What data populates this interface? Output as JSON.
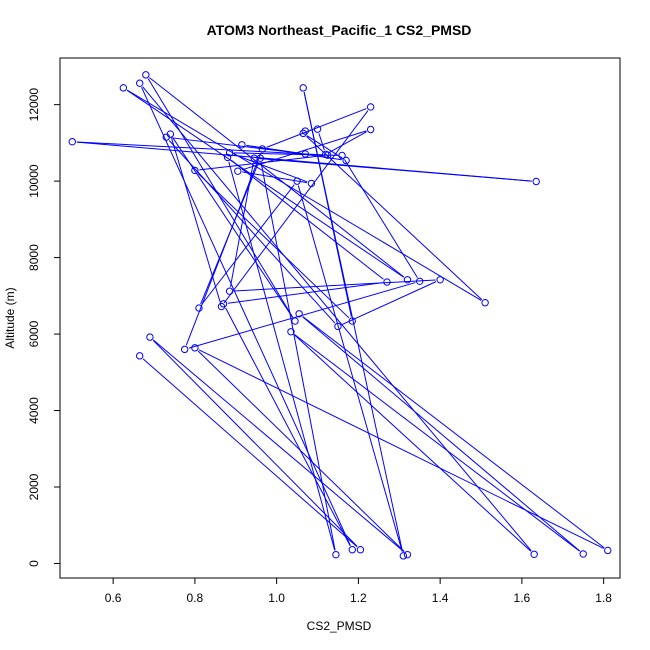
{
  "chart_data": {
    "type": "line",
    "title": "ATOM3 Northeast_Pacific_1 CS2_PMSD",
    "xlabel": "CS2_PMSD",
    "ylabel": "Altitude (m)",
    "xlim": [
      0.47,
      1.84
    ],
    "ylim": [
      -380,
      13220
    ],
    "x_ticks": [
      "0.6",
      "0.8",
      "1.0",
      "1.2",
      "1.4",
      "1.6",
      "1.8"
    ],
    "x_tick_values": [
      0.6,
      0.8,
      1.0,
      1.2,
      1.4,
      1.6,
      1.8
    ],
    "y_ticks": [
      "0",
      "2000",
      "4000",
      "6000",
      "8000",
      "10000",
      "12000"
    ],
    "y_tick_values": [
      0,
      2000,
      4000,
      6000,
      8000,
      10000,
      12000
    ],
    "grid": false,
    "series": [
      {
        "color": "#0000ff",
        "marker": "open-circle",
        "points": [
          {
            "x": 0.665,
            "y": 5430
          },
          {
            "x": 1.205,
            "y": 360
          },
          {
            "x": 0.69,
            "y": 5920
          },
          {
            "x": 1.32,
            "y": 230
          },
          {
            "x": 0.8,
            "y": 5640
          },
          {
            "x": 1.81,
            "y": 340
          },
          {
            "x": 1.055,
            "y": 6530
          },
          {
            "x": 1.75,
            "y": 250
          },
          {
            "x": 1.035,
            "y": 6060
          },
          {
            "x": 1.63,
            "y": 240
          },
          {
            "x": 0.665,
            "y": 12560
          },
          {
            "x": 1.185,
            "y": 360
          },
          {
            "x": 0.87,
            "y": 6790
          },
          {
            "x": 1.27,
            "y": 7360
          },
          {
            "x": 0.88,
            "y": 10620
          },
          {
            "x": 1.145,
            "y": 230
          },
          {
            "x": 0.96,
            "y": 10600
          },
          {
            "x": 0.81,
            "y": 6680
          },
          {
            "x": 1.05,
            "y": 10000
          },
          {
            "x": 1.31,
            "y": 200
          },
          {
            "x": 1.065,
            "y": 12440
          },
          {
            "x": 1.185,
            "y": 6340
          },
          {
            "x": 0.8,
            "y": 10280
          },
          {
            "x": 1.125,
            "y": 10680
          },
          {
            "x": 0.5,
            "y": 11030
          },
          {
            "x": 1.635,
            "y": 9990
          },
          {
            "x": 0.945,
            "y": 10600
          },
          {
            "x": 0.885,
            "y": 7120
          },
          {
            "x": 1.4,
            "y": 7420
          },
          {
            "x": 1.15,
            "y": 6200
          },
          {
            "x": 0.73,
            "y": 11150
          },
          {
            "x": 1.07,
            "y": 10710
          },
          {
            "x": 0.915,
            "y": 10950
          },
          {
            "x": 1.17,
            "y": 10540
          },
          {
            "x": 1.065,
            "y": 11250
          },
          {
            "x": 1.51,
            "y": 6820
          },
          {
            "x": 0.625,
            "y": 12440
          },
          {
            "x": 1.32,
            "y": 7420
          },
          {
            "x": 0.68,
            "y": 12780
          },
          {
            "x": 1.045,
            "y": 6340
          },
          {
            "x": 0.74,
            "y": 11230
          },
          {
            "x": 0.865,
            "y": 6720
          },
          {
            "x": 1.23,
            "y": 11940
          },
          {
            "x": 0.965,
            "y": 10840
          },
          {
            "x": 0.775,
            "y": 5600
          },
          {
            "x": 1.35,
            "y": 7380
          },
          {
            "x": 1.16,
            "y": 10670
          },
          {
            "x": 0.885,
            "y": 10740
          },
          {
            "x": 1.085,
            "y": 9940
          },
          {
            "x": 0.905,
            "y": 10260
          },
          {
            "x": 1.23,
            "y": 11350
          },
          {
            "x": 1.12,
            "y": 10700
          },
          {
            "x": 1.1,
            "y": 11360
          },
          {
            "x": 1.07,
            "y": 11310
          }
        ]
      }
    ]
  }
}
